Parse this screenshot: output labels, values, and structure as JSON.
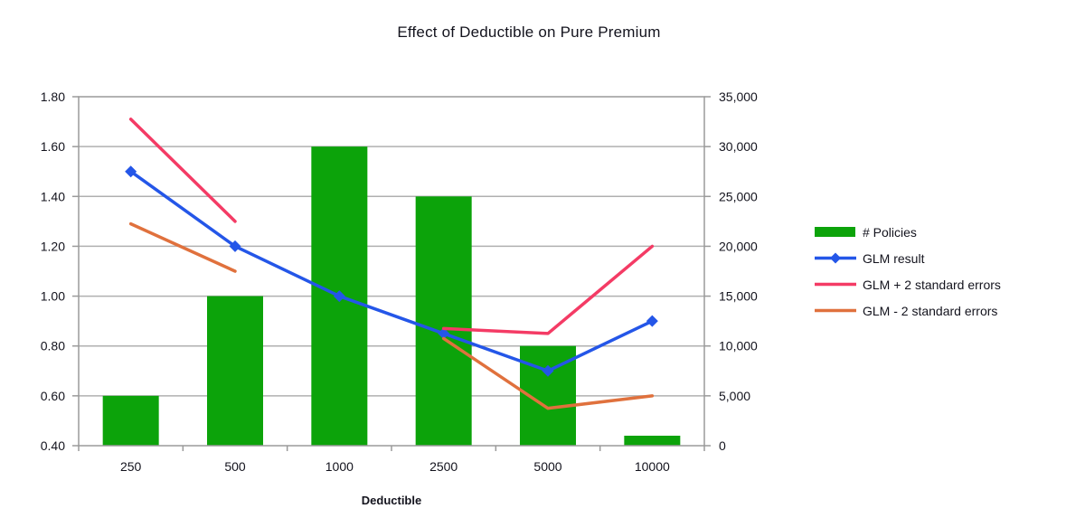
{
  "title": "Effect of Deductible on Pure Premium",
  "x_axis": {
    "label": "Deductible",
    "categories": [
      "250",
      "500",
      "1000",
      "2500",
      "5000",
      "10000"
    ]
  },
  "left_axis": {
    "ticks": [
      "1.80",
      "1.60",
      "1.40",
      "1.20",
      "1.00",
      "0.80",
      "0.60",
      "0.40"
    ]
  },
  "right_axis": {
    "ticks": [
      "35,000",
      "30,000",
      "25,000",
      "20,000",
      "15,000",
      "10,000",
      "5,000",
      "0"
    ]
  },
  "colors": {
    "bar_green": "#0ca30a",
    "line_blue": "#2456e8",
    "line_pink": "#f43b65",
    "line_orange": "#e0713d",
    "grid": "#b0b0b0",
    "border": "#9a9a9a",
    "text": "#13131d",
    "background": "#ffffff"
  },
  "chart_data": {
    "type": "combo-bar-line",
    "title": "Effect of Deductible on Pure Premium",
    "xlabel": "Deductible",
    "categories": [
      "250",
      "500",
      "1000",
      "2500",
      "5000",
      "10000"
    ],
    "series": [
      {
        "name": "# Policies",
        "chart_type": "bar",
        "axis": "right",
        "color": "#0ca30a",
        "values": [
          5000,
          15000,
          30000,
          25000,
          10000,
          1000
        ]
      },
      {
        "name": "GLM result",
        "chart_type": "line",
        "marker": "diamond",
        "axis": "left",
        "color": "#2456e8",
        "values": [
          1.5,
          1.2,
          1.0,
          0.85,
          0.7,
          0.9
        ]
      },
      {
        "name": "GLM + 2 standard errors",
        "chart_type": "line",
        "axis": "left",
        "color": "#f43b65",
        "values": [
          1.71,
          1.3,
          null,
          0.87,
          0.85,
          1.2
        ]
      },
      {
        "name": "GLM - 2 standard errors",
        "chart_type": "line",
        "axis": "left",
        "color": "#e0713d",
        "values": [
          1.29,
          1.1,
          null,
          0.83,
          0.55,
          0.6
        ]
      }
    ],
    "left_ylim": [
      0.4,
      1.8
    ],
    "left_tick_step": 0.2,
    "right_ylim": [
      0,
      35000
    ],
    "right_tick_step": 5000,
    "grid": true,
    "gridlines": "horizontal-only",
    "legend_position": "right"
  }
}
